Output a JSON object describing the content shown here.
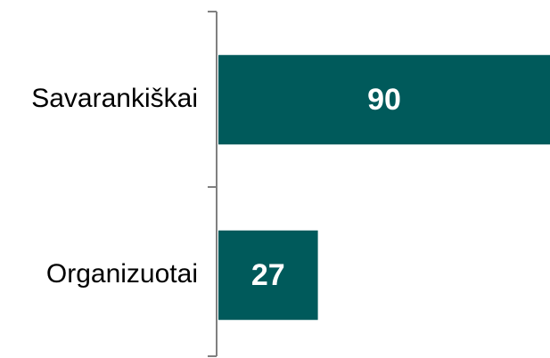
{
  "chart_data": {
    "type": "bar",
    "orientation": "horizontal",
    "categories": [
      "Savarankiškai",
      "Organizuotai"
    ],
    "values": [
      90,
      27
    ],
    "color": "#005a5b",
    "xlim": [
      0,
      90
    ]
  }
}
